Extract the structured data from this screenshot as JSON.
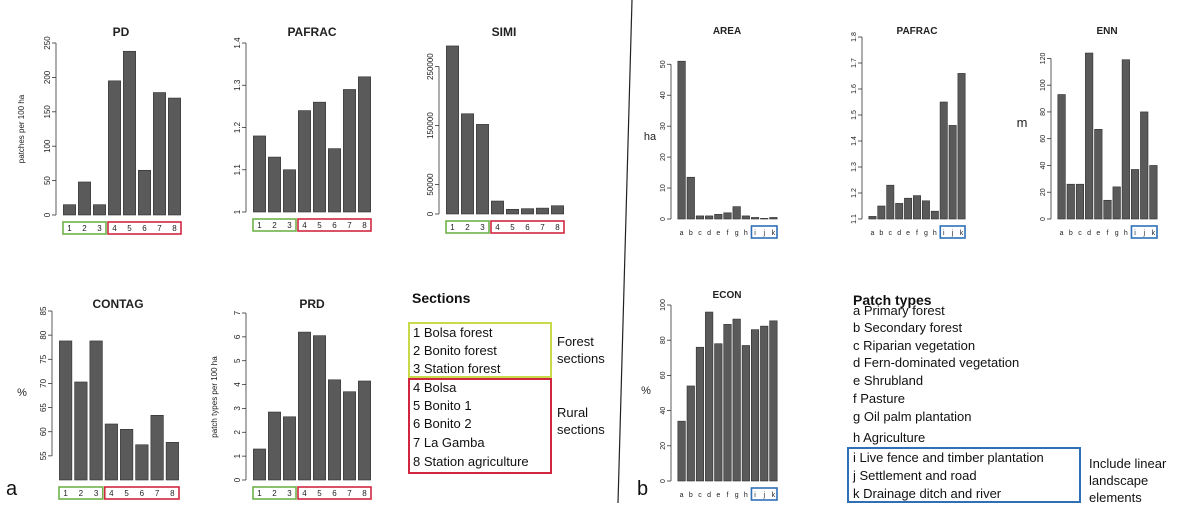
{
  "panel_labels": {
    "a": "a",
    "b": "b"
  },
  "sections_legend": {
    "heading": "Sections",
    "items": [
      "1  Bolsa forest",
      "2  Bonito forest",
      "3  Station forest",
      "4  Bolsa",
      "5  Bonito 1",
      "6  Bonito 2",
      "7  La Gamba",
      "8  Station agriculture"
    ],
    "forest_label": "Forest sections",
    "rural_label": "Rural sections",
    "forest_color": "#a8c94a",
    "rural_color": "#d0273f"
  },
  "patch_legend": {
    "heading": "Patch types",
    "items": [
      "a  Primary forest",
      "b  Secondary forest",
      "c  Riparian vegetation",
      "d  Fern-dominated vegetation",
      "e  Shrubland",
      "f  Pasture",
      "g  Oil palm plantation",
      "h  Agriculture",
      "i  Live fence and timber plantation",
      "j  Settlement and road",
      "k  Drainage ditch and river"
    ],
    "linear_label": "Include linear landscape elements",
    "linear_color": "#2f6fb5"
  },
  "colors": {
    "bar": "#5a5a5a",
    "forest": "#6fb24a",
    "rural": "#d0273f",
    "linear": "#2f6fb5"
  },
  "chart_data": [
    {
      "type": "bar",
      "title": "PD",
      "ylabel": "patches per 100 ha",
      "categories": [
        "1",
        "2",
        "3",
        "4",
        "5",
        "6",
        "7",
        "8"
      ],
      "values": [
        15,
        48,
        15,
        195,
        238,
        65,
        178,
        170
      ],
      "ylim": [
        0,
        250
      ],
      "yticks": [
        0,
        50,
        100,
        150,
        200,
        250
      ]
    },
    {
      "type": "bar",
      "title": "PAFRAC",
      "ylabel": "",
      "categories": [
        "1",
        "2",
        "3",
        "4",
        "5",
        "6",
        "7",
        "8"
      ],
      "values": [
        1.18,
        1.13,
        1.1,
        1.24,
        1.26,
        1.15,
        1.29,
        1.32
      ],
      "ylim": [
        1.0,
        1.4
      ],
      "yticks": [
        1.0,
        1.1,
        1.2,
        1.3,
        1.4
      ]
    },
    {
      "type": "bar",
      "title": "SIMI",
      "ylabel": "",
      "categories": [
        "1",
        "2",
        "3",
        "4",
        "5",
        "6",
        "7",
        "8"
      ],
      "values": [
        285000,
        170000,
        152000,
        22000,
        8000,
        9000,
        10000,
        14000
      ],
      "ylim": [
        0,
        290000
      ],
      "yticks": [
        0,
        50000,
        150000,
        250000
      ]
    },
    {
      "type": "bar",
      "title": "CONTAG",
      "ylabel": "%",
      "categories": [
        "1",
        "2",
        "3",
        "4",
        "5",
        "6",
        "7",
        "8"
      ],
      "values": [
        78.8,
        70.3,
        78.8,
        61.6,
        60.5,
        57.3,
        63.4,
        57.8
      ],
      "ylim": [
        50,
        85
      ],
      "yticks": [
        55,
        60,
        65,
        70,
        75,
        80,
        85
      ]
    },
    {
      "type": "bar",
      "title": "PRD",
      "ylabel": "patch types per 100 ha",
      "categories": [
        "1",
        "2",
        "3",
        "4",
        "5",
        "6",
        "7",
        "8"
      ],
      "values": [
        1.3,
        2.85,
        2.65,
        6.2,
        6.05,
        4.2,
        3.7,
        4.15
      ],
      "ylim": [
        0,
        7
      ],
      "yticks": [
        0,
        1,
        2,
        3,
        4,
        5,
        6,
        7
      ]
    },
    {
      "type": "bar",
      "title": "AREA",
      "ylabel": "ha",
      "categories": [
        "a",
        "b",
        "c",
        "d",
        "e",
        "f",
        "g",
        "h",
        "i",
        "j",
        "k"
      ],
      "values": [
        51,
        13.5,
        1,
        1,
        1.5,
        2,
        4,
        1,
        0.5,
        0.2,
        0.5
      ],
      "ylim": [
        0,
        53
      ],
      "yticks": [
        0,
        10,
        20,
        30,
        40,
        50
      ]
    },
    {
      "type": "bar",
      "title": "PAFRAC",
      "ylabel": "",
      "categories": [
        "a",
        "b",
        "c",
        "d",
        "e",
        "f",
        "g",
        "h",
        "i",
        "j",
        "k"
      ],
      "values": [
        1.11,
        1.15,
        1.23,
        1.16,
        1.18,
        1.19,
        1.17,
        1.13,
        1.55,
        1.46,
        1.66
      ],
      "ylim": [
        1.1,
        1.8
      ],
      "yticks": [
        1.1,
        1.2,
        1.3,
        1.4,
        1.5,
        1.6,
        1.7,
        1.8
      ]
    },
    {
      "type": "bar",
      "title": "ENN",
      "ylabel": "m",
      "categories": [
        "a",
        "b",
        "c",
        "d",
        "e",
        "f",
        "g",
        "h",
        "i",
        "j",
        "k"
      ],
      "values": [
        93,
        26,
        26,
        124,
        67,
        14,
        24,
        119,
        37,
        80,
        40
      ],
      "ylim": [
        0,
        130
      ],
      "yticks": [
        0,
        20,
        40,
        60,
        80,
        100,
        120
      ]
    },
    {
      "type": "bar",
      "title": "ECON",
      "ylabel": "%",
      "categories": [
        "a",
        "b",
        "c",
        "d",
        "e",
        "f",
        "g",
        "h",
        "i",
        "j",
        "k"
      ],
      "values": [
        34,
        54,
        76,
        96,
        78,
        89,
        92,
        77,
        86,
        88,
        91
      ],
      "ylim": [
        0,
        100
      ],
      "yticks": [
        0,
        20,
        40,
        60,
        80,
        100
      ]
    }
  ]
}
